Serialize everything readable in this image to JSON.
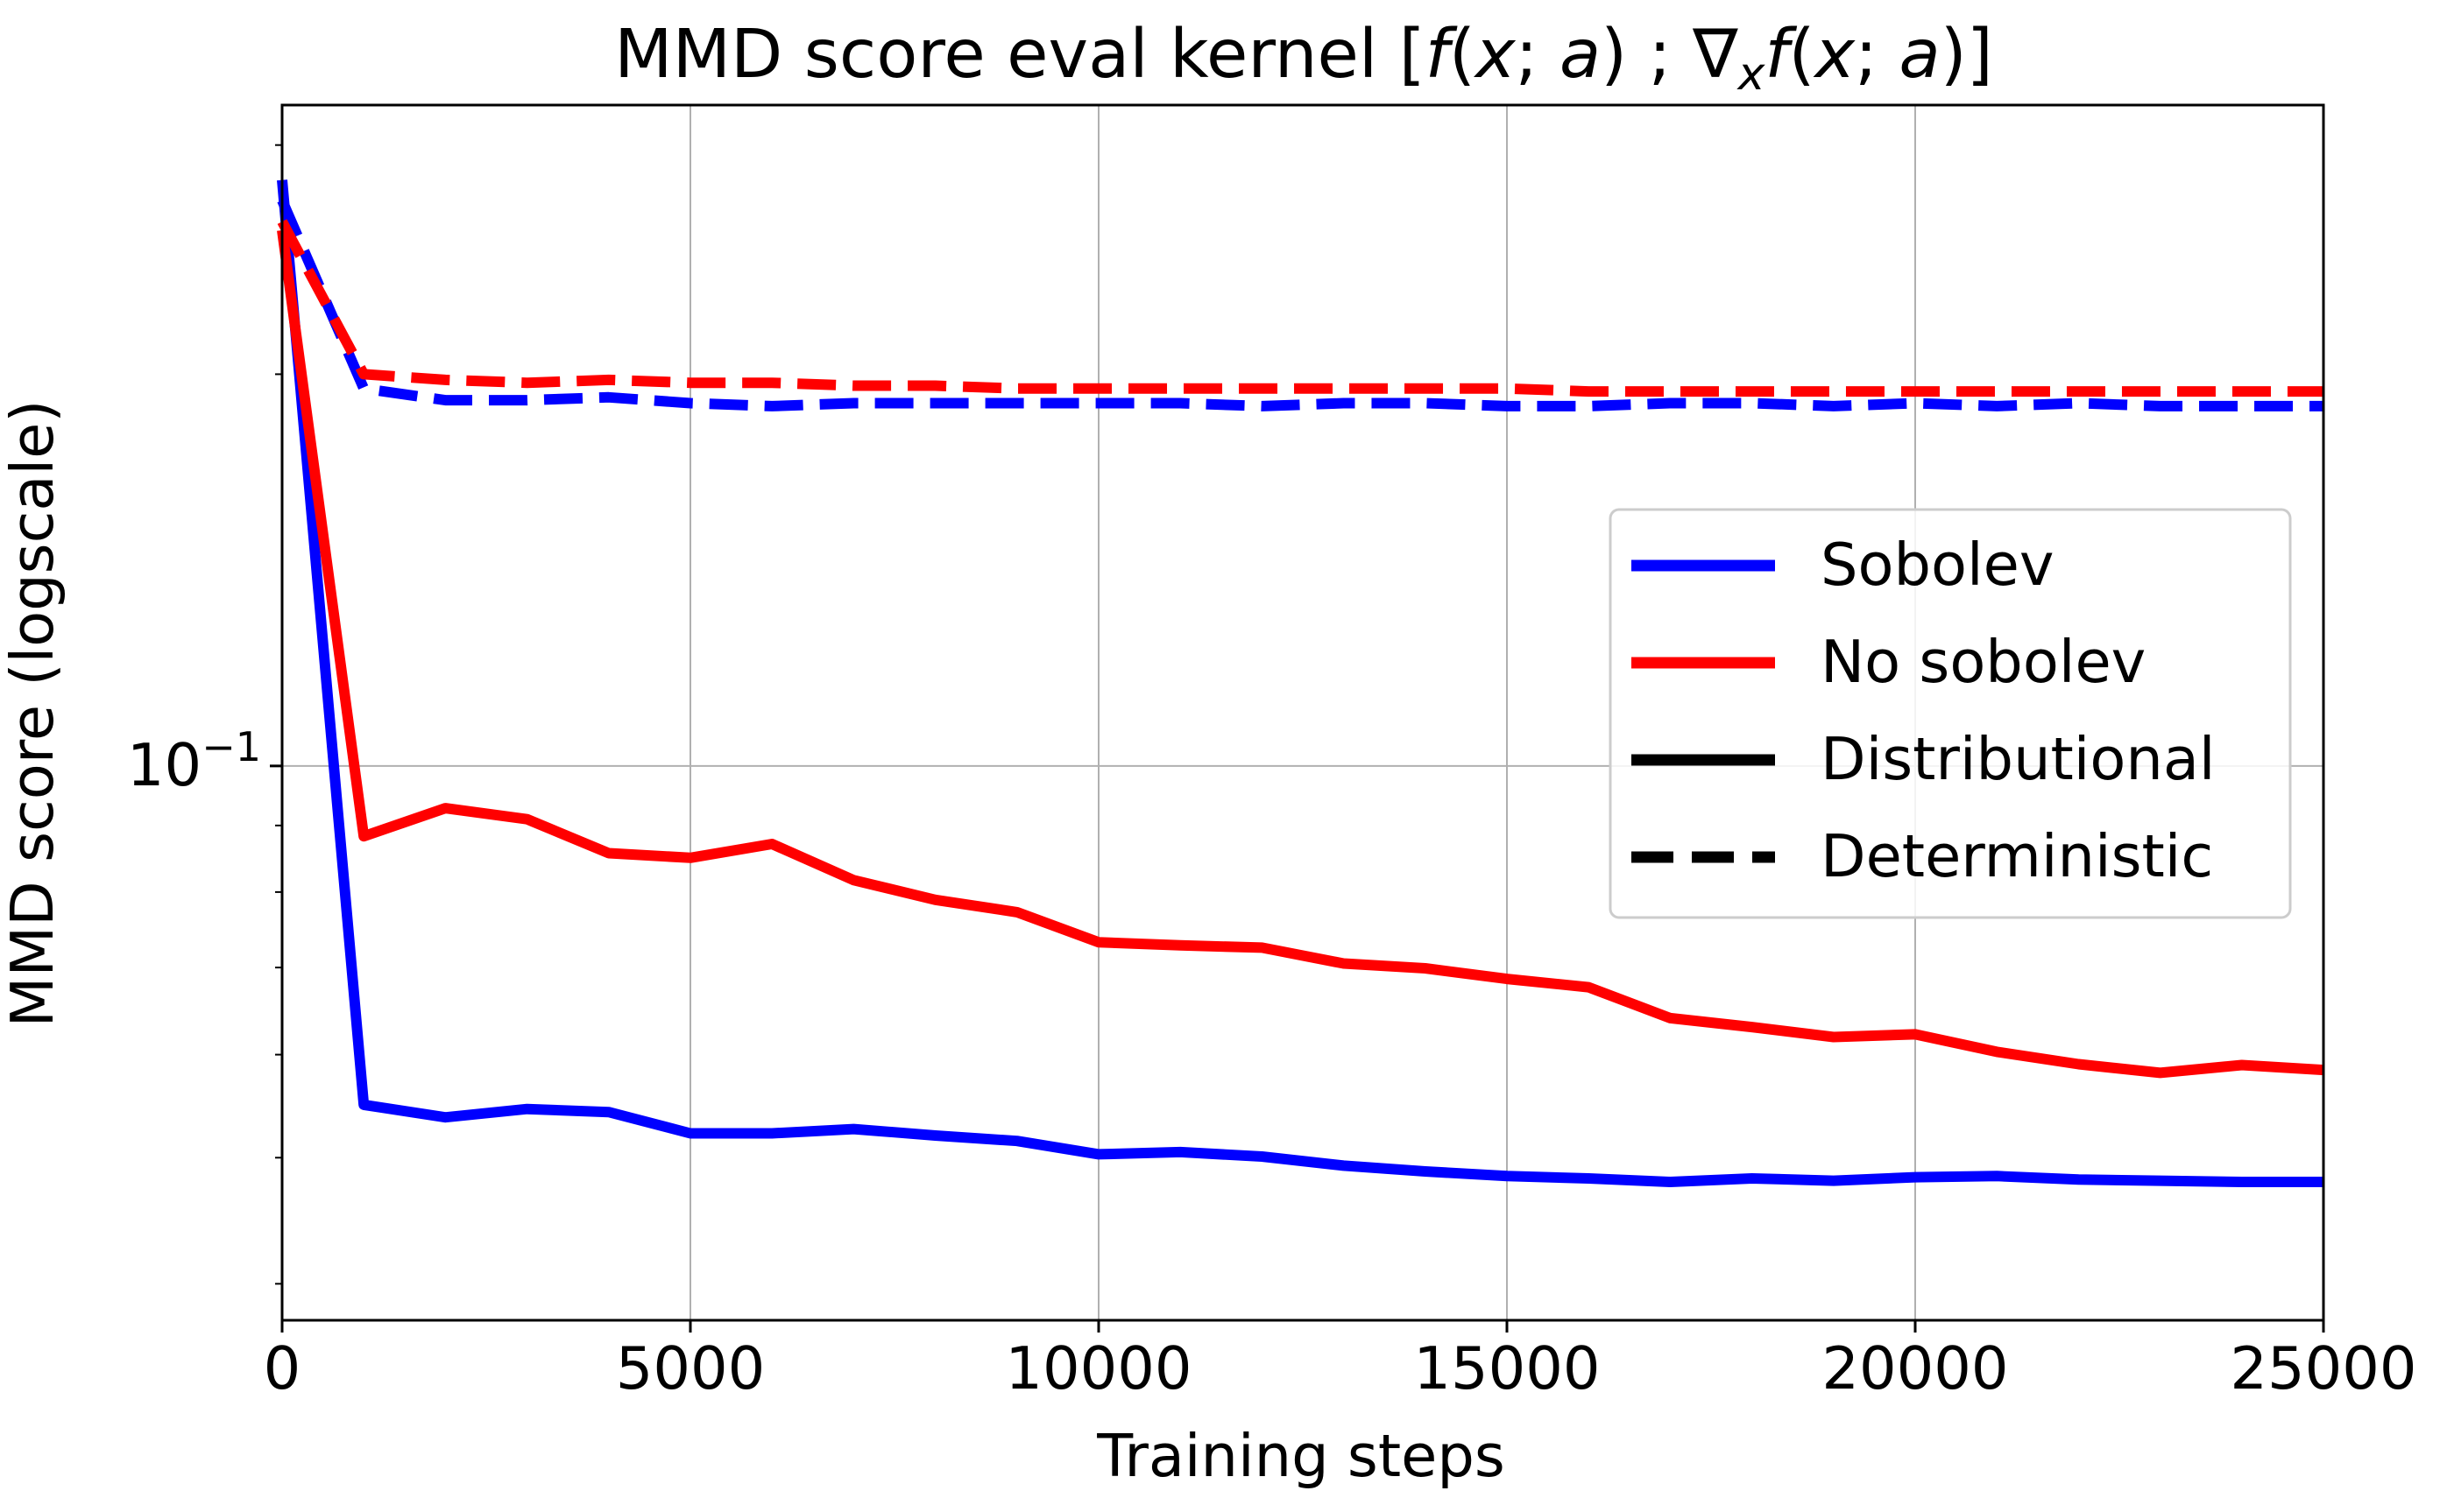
{
  "chart_data": {
    "type": "line",
    "title_parts": [
      "MMD score eval kernel [",
      "f",
      "(",
      "x",
      "; ",
      "a",
      ") ; ∇",
      "x",
      "f",
      "(",
      "x",
      "; ",
      "a",
      ")]"
    ],
    "xlabel": "Training steps",
    "ylabel": "MMD score (logscale)",
    "yscale": "log",
    "xlim": [
      0,
      25000
    ],
    "ylim": [
      0.0375,
      0.322
    ],
    "grid": true,
    "x_ticks": [
      {
        "value": 0,
        "label": "0"
      },
      {
        "value": 5000,
        "label": "5000"
      },
      {
        "value": 10000,
        "label": "10000"
      },
      {
        "value": 15000,
        "label": "15000"
      },
      {
        "value": 20000,
        "label": "20000"
      },
      {
        "value": 25000,
        "label": "25000"
      }
    ],
    "y_major_tick": {
      "value": 0.1,
      "label_base": "10",
      "label_exp": "−1"
    },
    "y_minor_ticks": [
      0.04,
      0.05,
      0.06,
      0.07,
      0.08,
      0.09,
      0.2,
      0.3
    ],
    "x": [
      0,
      1000,
      2000,
      3000,
      4000,
      5000,
      6000,
      7000,
      8000,
      9000,
      10000,
      11000,
      12000,
      13000,
      14000,
      15000,
      16000,
      17000,
      18000,
      19000,
      20000,
      21000,
      22000,
      23000,
      24000,
      25000
    ],
    "series": [
      {
        "name": "Sobolev",
        "mode": "Distributional",
        "color": "#0000ff",
        "dash": "solid",
        "values": [
          0.282,
          0.0549,
          0.0537,
          0.0545,
          0.0542,
          0.0522,
          0.0522,
          0.0526,
          0.052,
          0.0515,
          0.0503,
          0.0505,
          0.0501,
          0.0493,
          0.0488,
          0.0484,
          0.0482,
          0.0479,
          0.0482,
          0.048,
          0.0483,
          0.0484,
          0.0481,
          0.048,
          0.0479,
          0.0479
        ]
      },
      {
        "name": "No sobolev",
        "mode": "Distributional",
        "color": "#ff0000",
        "dash": "solid",
        "values": [
          0.258,
          0.0883,
          0.0928,
          0.091,
          0.0857,
          0.085,
          0.0871,
          0.0817,
          0.0789,
          0.0772,
          0.0732,
          0.0728,
          0.0725,
          0.0705,
          0.0699,
          0.0686,
          0.0676,
          0.064,
          0.063,
          0.0619,
          0.0622,
          0.0603,
          0.059,
          0.0581,
          0.0589,
          0.0584
        ]
      },
      {
        "name": "Sobolev",
        "mode": "Deterministic",
        "color": "#0000ff",
        "dash": "dashed",
        "values": [
          0.272,
          0.195,
          0.191,
          0.191,
          0.192,
          0.19,
          0.189,
          0.19,
          0.19,
          0.19,
          0.19,
          0.19,
          0.189,
          0.19,
          0.19,
          0.189,
          0.189,
          0.19,
          0.19,
          0.189,
          0.19,
          0.189,
          0.19,
          0.189,
          0.189,
          0.189
        ]
      },
      {
        "name": "No sobolev",
        "mode": "Deterministic",
        "color": "#ff0000",
        "dash": "dashed",
        "values": [
          0.262,
          0.2,
          0.198,
          0.197,
          0.198,
          0.197,
          0.197,
          0.196,
          0.196,
          0.195,
          0.195,
          0.195,
          0.195,
          0.195,
          0.195,
          0.195,
          0.194,
          0.194,
          0.194,
          0.194,
          0.194,
          0.194,
          0.194,
          0.194,
          0.194,
          0.194
        ]
      }
    ],
    "legend": {
      "position": "center-right",
      "entries": [
        {
          "label": "Sobolev",
          "color": "#0000ff",
          "dash": "solid"
        },
        {
          "label": "No sobolev",
          "color": "#ff0000",
          "dash": "solid"
        },
        {
          "label": "Distributional",
          "color": "#000000",
          "dash": "solid"
        },
        {
          "label": "Deterministic",
          "color": "#000000",
          "dash": "dashed"
        }
      ]
    }
  }
}
